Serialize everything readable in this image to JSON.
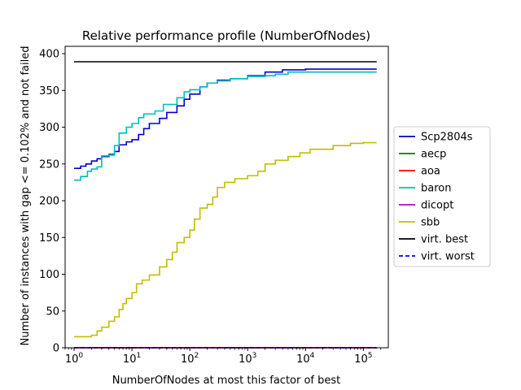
{
  "chart_data": {
    "type": "line",
    "title": "Relative performance profile (NumberOfNodes)",
    "xlabel": "NumberOfNodes at most this factor of best",
    "ylabel": "Number of instances with gap <= 0.102% and not failed",
    "xscale": "log",
    "xlim": [
      0.7,
      270000
    ],
    "ylim": [
      0,
      410
    ],
    "xticks": [
      {
        "value": 1,
        "base": "10",
        "exp": "0"
      },
      {
        "value": 10,
        "base": "10",
        "exp": "1"
      },
      {
        "value": 100,
        "base": "10",
        "exp": "2"
      },
      {
        "value": 1000,
        "base": "10",
        "exp": "3"
      },
      {
        "value": 10000,
        "base": "10",
        "exp": "4"
      },
      {
        "value": 100000,
        "base": "10",
        "exp": "5"
      }
    ],
    "yticks": [
      0,
      50,
      100,
      150,
      200,
      250,
      300,
      350,
      400
    ],
    "legend_position": "center-right-outside",
    "series": [
      {
        "name": "Scp2804s",
        "color": "#0000cc",
        "dash": "solid",
        "points": [
          [
            1,
            244
          ],
          [
            1.3,
            247
          ],
          [
            1.6,
            250
          ],
          [
            2,
            254
          ],
          [
            2.5,
            257
          ],
          [
            3,
            260
          ],
          [
            4,
            263
          ],
          [
            5,
            267
          ],
          [
            6,
            276
          ],
          [
            8,
            280
          ],
          [
            10,
            283
          ],
          [
            13,
            290
          ],
          [
            16,
            298
          ],
          [
            20,
            305
          ],
          [
            30,
            312
          ],
          [
            40,
            320
          ],
          [
            60,
            329
          ],
          [
            80,
            338
          ],
          [
            100,
            345
          ],
          [
            150,
            355
          ],
          [
            200,
            360
          ],
          [
            300,
            364
          ],
          [
            500,
            366
          ],
          [
            1000,
            370
          ],
          [
            2000,
            375
          ],
          [
            4000,
            378
          ],
          [
            10000,
            379
          ],
          [
            170000,
            379
          ]
        ]
      },
      {
        "name": "aecp",
        "color": "#008000",
        "dash": "solid",
        "points": [
          [
            1,
            0
          ],
          [
            170000,
            0
          ]
        ]
      },
      {
        "name": "aoa",
        "color": "#ff0000",
        "dash": "solid",
        "points": [
          [
            1,
            0
          ],
          [
            170000,
            0
          ]
        ]
      },
      {
        "name": "baron",
        "color": "#00bfbf",
        "dash": "solid",
        "points": [
          [
            1,
            228
          ],
          [
            1.3,
            233
          ],
          [
            1.7,
            240
          ],
          [
            2,
            243
          ],
          [
            2.5,
            246
          ],
          [
            3,
            261
          ],
          [
            4,
            262
          ],
          [
            5,
            275
          ],
          [
            6,
            292
          ],
          [
            8,
            300
          ],
          [
            10,
            305
          ],
          [
            13,
            313
          ],
          [
            16,
            318
          ],
          [
            25,
            322
          ],
          [
            35,
            331
          ],
          [
            60,
            340
          ],
          [
            80,
            348
          ],
          [
            100,
            351
          ],
          [
            150,
            355
          ],
          [
            200,
            360
          ],
          [
            300,
            363
          ],
          [
            500,
            366
          ],
          [
            1000,
            369
          ],
          [
            2000,
            370
          ],
          [
            3000,
            372
          ],
          [
            5000,
            375
          ],
          [
            170000,
            375
          ]
        ]
      },
      {
        "name": "dicopt",
        "color": "#bf00bf",
        "dash": "solid",
        "points": [
          [
            1,
            0
          ],
          [
            170000,
            0
          ]
        ]
      },
      {
        "name": "sbb",
        "color": "#bfbf00",
        "dash": "solid",
        "points": [
          [
            1,
            15
          ],
          [
            2,
            17
          ],
          [
            2.5,
            23
          ],
          [
            3,
            28
          ],
          [
            4,
            36
          ],
          [
            5,
            42
          ],
          [
            6,
            52
          ],
          [
            7,
            60
          ],
          [
            8,
            67
          ],
          [
            10,
            75
          ],
          [
            12,
            87
          ],
          [
            15,
            92
          ],
          [
            20,
            99
          ],
          [
            30,
            110
          ],
          [
            40,
            120
          ],
          [
            50,
            130
          ],
          [
            60,
            143
          ],
          [
            80,
            150
          ],
          [
            100,
            160
          ],
          [
            120,
            175
          ],
          [
            150,
            190
          ],
          [
            200,
            195
          ],
          [
            250,
            205
          ],
          [
            300,
            218
          ],
          [
            400,
            225
          ],
          [
            600,
            230
          ],
          [
            1000,
            234
          ],
          [
            1500,
            240
          ],
          [
            2000,
            250
          ],
          [
            3000,
            255
          ],
          [
            5000,
            260
          ],
          [
            8000,
            265
          ],
          [
            12000,
            270
          ],
          [
            30000,
            275
          ],
          [
            60000,
            278
          ],
          [
            100000,
            279
          ],
          [
            170000,
            279
          ]
        ]
      },
      {
        "name": "virt. best",
        "color": "#000000",
        "dash": "solid",
        "points": [
          [
            1,
            389
          ],
          [
            170000,
            389
          ]
        ]
      },
      {
        "name": "virt. worst",
        "color": "#0000ff",
        "dash": "dashed",
        "points": [
          [
            1,
            0
          ],
          [
            170000,
            0
          ]
        ]
      }
    ]
  }
}
